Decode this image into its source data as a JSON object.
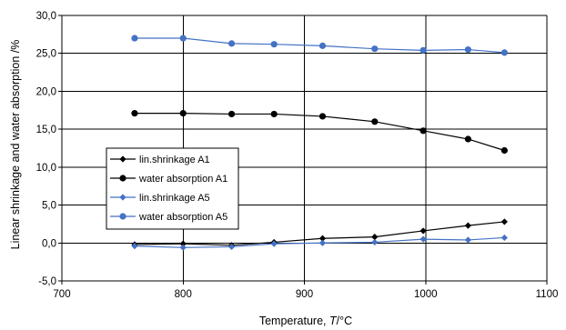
{
  "chart_data": {
    "type": "line",
    "xlabel_prefix": "Temperature, ",
    "xlabel_var": "T",
    "xlabel_unit": "/°C",
    "ylabel": "Linear shrinkage and water absorption /%",
    "xlim": [
      700,
      1100
    ],
    "ylim": [
      -5,
      30
    ],
    "x_ticks": [
      "700",
      "800",
      "900",
      "1000",
      "1100"
    ],
    "y_ticks": [
      "-5,0",
      "0,0",
      "5,0",
      "10,0",
      "15,0",
      "20,0",
      "25,0",
      "30,0"
    ],
    "grid": "major x and y",
    "legend_position": "center-left",
    "x": [
      760,
      800,
      840,
      875,
      915,
      958,
      998,
      1035,
      1065
    ],
    "series": [
      {
        "name": "lin.shrinkage A1",
        "color": "#000000",
        "marker": "diamond",
        "values": [
          -0.2,
          -0.1,
          -0.3,
          0.1,
          0.6,
          0.8,
          1.6,
          2.3,
          2.8
        ]
      },
      {
        "name": "water absorption A1",
        "color": "#000000",
        "marker": "circle",
        "values": [
          17.1,
          17.1,
          17.0,
          17.0,
          16.7,
          16.0,
          14.8,
          13.7,
          12.2
        ]
      },
      {
        "name": "lin.shrinkage A5",
        "color": "#4472c4",
        "marker": "diamond",
        "values": [
          -0.4,
          -0.6,
          -0.5,
          -0.1,
          0.0,
          0.1,
          0.5,
          0.4,
          0.7
        ]
      },
      {
        "name": "water absorption A5",
        "color": "#4472c4",
        "marker": "circle",
        "values": [
          27.0,
          27.0,
          26.3,
          26.2,
          26.0,
          25.6,
          25.4,
          25.5,
          25.1
        ]
      }
    ]
  }
}
